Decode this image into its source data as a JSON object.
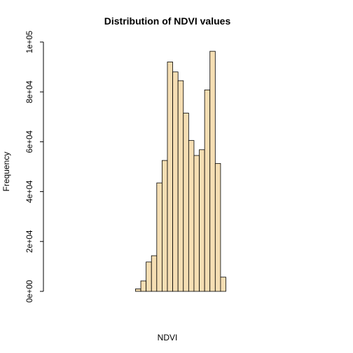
{
  "chart_data": {
    "type": "bar",
    "title": "Distribution of NDVI values",
    "xlabel": "NDVI",
    "ylabel": "Frequency",
    "ylim": [
      0,
      100000
    ],
    "y_ticks": [
      {
        "value": 0,
        "label": "0e+00"
      },
      {
        "value": 20000,
        "label": "2e+04"
      },
      {
        "value": 40000,
        "label": "4e+04"
      },
      {
        "value": 60000,
        "label": "6e+04"
      },
      {
        "value": 80000,
        "label": "8e+04"
      },
      {
        "value": 100000,
        "label": "1e+05"
      }
    ],
    "bar_fill": "#F5DEB3",
    "bar_stroke": "#000000",
    "values": [
      0,
      0,
      0,
      0,
      0,
      0,
      0,
      0,
      0,
      0,
      0,
      0,
      0,
      0,
      0,
      0,
      1000,
      4200,
      11800,
      14300,
      43500,
      52500,
      92000,
      88000,
      84500,
      71500,
      60500,
      54500,
      56800,
      80800,
      96300,
      51300,
      5700,
      0,
      0,
      0,
      0,
      0,
      0,
      0,
      0,
      0,
      0,
      0
    ]
  }
}
